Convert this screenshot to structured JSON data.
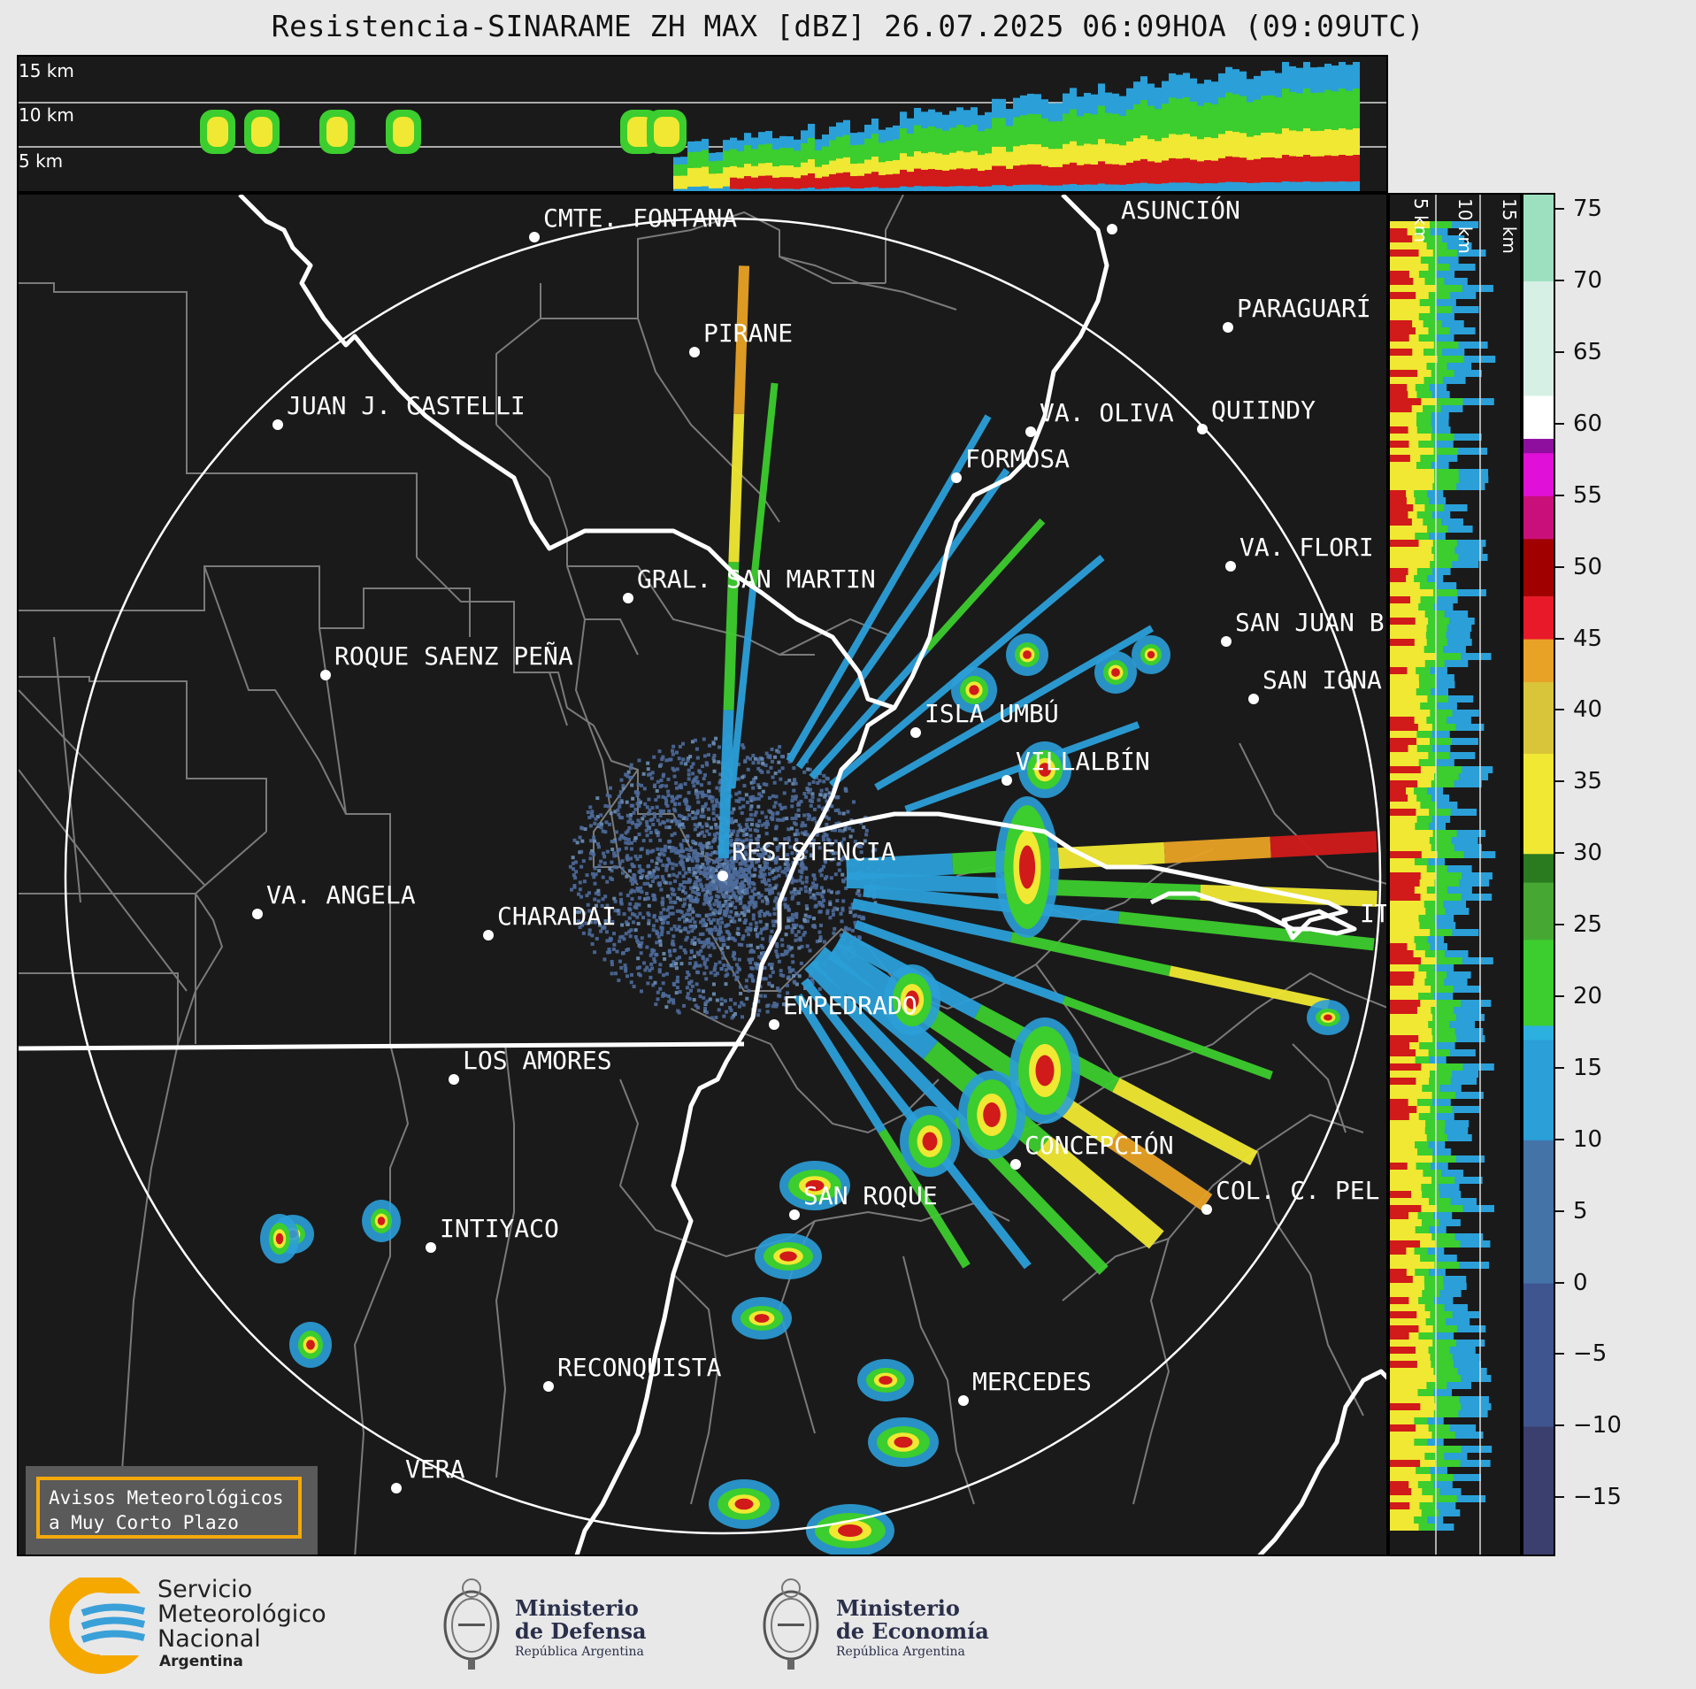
{
  "title": "Resistencia-SINARAME ZH MAX [dBZ] 26.07.2025 06:09HOA (09:09UTC)",
  "top_panel": {
    "height_labels": [
      "15 km",
      "10 km",
      "5 km"
    ]
  },
  "side_panel": {
    "height_labels": [
      "5 km",
      "10 km",
      "15 km"
    ]
  },
  "colorbar": {
    "unit": "dBZ",
    "range": [
      -19,
      76
    ],
    "ticks": [
      "75",
      "70",
      "65",
      "60",
      "55",
      "50",
      "45",
      "40",
      "35",
      "30",
      "25",
      "20",
      "15",
      "10",
      "5",
      "0",
      "−5",
      "−10",
      "−15"
    ],
    "colors": {
      "low": "#3a3f6e",
      "blue": "#2b9fd8",
      "green": "#3ccd2e",
      "yellow": "#f0e832",
      "orange": "#e8a225",
      "red": "#d11a1a",
      "magenta": "#e010d8",
      "white": "#ffffff",
      "teal": "#7fd4b5"
    }
  },
  "map": {
    "cities": [
      {
        "name": "CMTE. FONTANA"
      },
      {
        "name": "ASUNCIÓN"
      },
      {
        "name": "PARAGUARÍ"
      },
      {
        "name": "PIRANE"
      },
      {
        "name": "JUAN J. CASTELLI"
      },
      {
        "name": "VA. OLIVA"
      },
      {
        "name": "QUIINDY"
      },
      {
        "name": "FORMOSA"
      },
      {
        "name": "VA. FLORI"
      },
      {
        "name": "GRAL. SAN MARTIN"
      },
      {
        "name": "SAN JUAN B"
      },
      {
        "name": "ROQUE SAENZ PEÑA"
      },
      {
        "name": "SAN IGNA"
      },
      {
        "name": "ISLA UMBÚ"
      },
      {
        "name": "VILLALBÍN"
      },
      {
        "name": "RESISTENCIA"
      },
      {
        "name": "VA. ANGELA"
      },
      {
        "name": "CHARADAI"
      },
      {
        "name": "IT"
      },
      {
        "name": "EMPEDRADO"
      },
      {
        "name": "LOS AMORES"
      },
      {
        "name": "CONCEPCIÓN"
      },
      {
        "name": "SAN ROQUE"
      },
      {
        "name": "COL. C. PEL"
      },
      {
        "name": "INTIYACO"
      },
      {
        "name": "RECONQUISTA"
      },
      {
        "name": "MERCEDES"
      },
      {
        "name": "VERA"
      }
    ]
  },
  "notice": {
    "line1": "Avisos Meteorológicos",
    "line2": "a Muy Corto Plazo"
  },
  "footer": {
    "smn": {
      "line1": "Servicio",
      "line2": "Meteorológico",
      "line3": "Nacional",
      "line4": "Argentina"
    },
    "defensa": {
      "line1": "Ministerio",
      "line2": "de Defensa",
      "line3": "República Argentina"
    },
    "economia": {
      "line1": "Ministerio",
      "line2": "de Economía",
      "line3": "República Argentina"
    }
  }
}
